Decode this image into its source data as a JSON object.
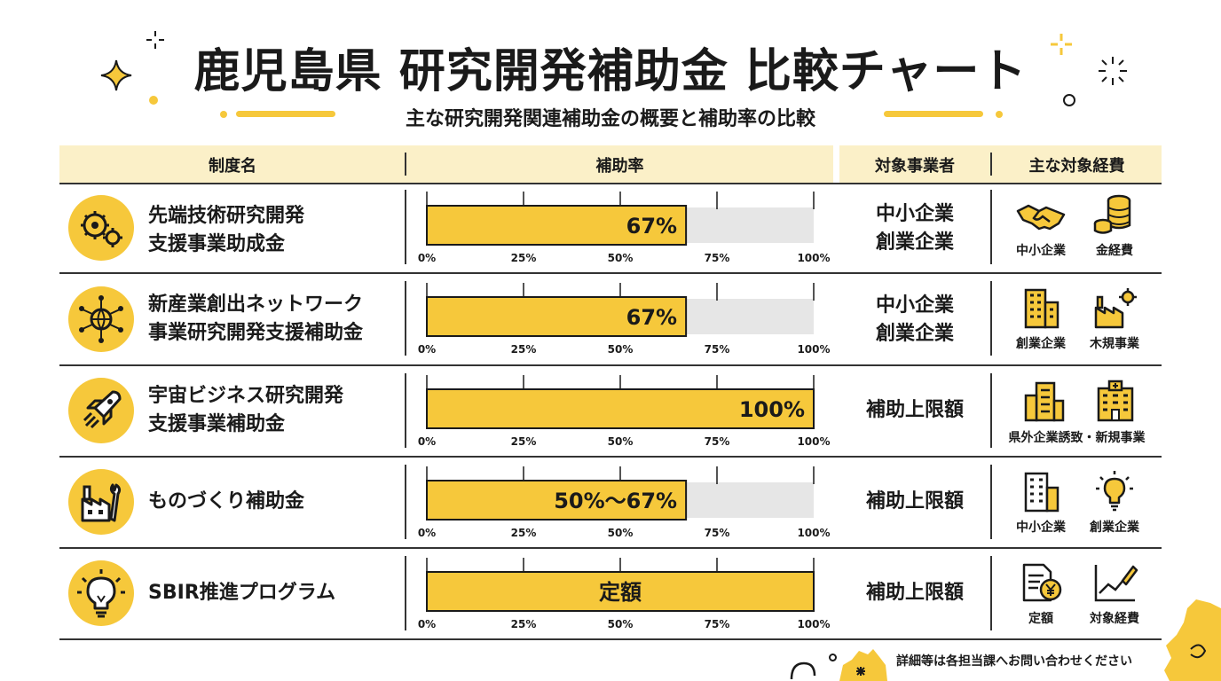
{
  "title": "鹿児島県 研究開発補助金 比較チャート",
  "subtitle": "主な研究開発関連補助金の概要と補助率の比較",
  "headers": {
    "name": "制度名",
    "rate": "補助率",
    "target": "対象事業者",
    "expenses": "主な対象経費"
  },
  "axis_ticks": [
    "0%",
    "25%",
    "50%",
    "75%",
    "100%"
  ],
  "rows": [
    {
      "name_lines": [
        "先端技術研究開発",
        "支援事業助成金"
      ],
      "icon": "gears-icon",
      "rate_label": "67%",
      "target_lines": [
        "中小企業",
        "創業企業"
      ],
      "expenses": [
        {
          "icon": "handshake-icon",
          "label": "中小企業"
        },
        {
          "icon": "coins-icon",
          "label": "金経費"
        }
      ]
    },
    {
      "name_lines": [
        "新産業創出ネットワーク",
        "事業研究開発支援補助金"
      ],
      "icon": "network-globe-icon",
      "rate_label": "67%",
      "target_lines": [
        "中小企業",
        "創業企業"
      ],
      "expenses": [
        {
          "icon": "building-icon",
          "label": "創業企業"
        },
        {
          "icon": "factory-gear-icon",
          "label": "木規事業"
        }
      ]
    },
    {
      "name_lines": [
        "宇宙ビジネス研究開発",
        "支援事業補助金"
      ],
      "icon": "rocket-icon",
      "rate_label": "100%",
      "target_lines": [
        "補助上限額"
      ],
      "expenses": [
        {
          "icon": "office-building-icon",
          "label": ""
        },
        {
          "icon": "hospital-building-icon",
          "label": ""
        }
      ],
      "expenses_caption": "県外企業誘致・新規事業"
    },
    {
      "name_lines": [
        "ものづくり補助金"
      ],
      "icon": "factory-wrench-icon",
      "rate_label": "50%〜67%",
      "target_lines": [
        "補助上限額"
      ],
      "expenses": [
        {
          "icon": "office-building-icon",
          "label": "中小企業"
        },
        {
          "icon": "lightbulb-icon",
          "label": "創業企業"
        }
      ]
    },
    {
      "name_lines": [
        "SBIR推進プログラム"
      ],
      "icon": "lightbulb-icon",
      "rate_label": "定額",
      "target_lines": [
        "補助上限額"
      ],
      "expenses": [
        {
          "icon": "document-yen-icon",
          "label": "定額"
        },
        {
          "icon": "chart-pen-icon",
          "label": "対象経費"
        }
      ]
    }
  ],
  "footer": "詳細等は各担当課へお問い合わせください",
  "colors": {
    "accent": "#f6c83b",
    "header_bg": "#fbf0c8",
    "track": "#e6e6e6",
    "ink": "#1a1a1a"
  },
  "chart_data": {
    "type": "bar",
    "orientation": "horizontal",
    "categories": [
      "先端技術研究開発支援事業助成金",
      "新産業創出ネットワーク事業研究開発支援補助金",
      "宇宙ビジネス研究開発支援事業補助金",
      "ものづくり補助金",
      "SBIR推進プログラム"
    ],
    "values": [
      67,
      67,
      100,
      67,
      100
    ],
    "value_labels": [
      "67%",
      "67%",
      "100%",
      "50%〜67%",
      "定額"
    ],
    "xlim": [
      0,
      100
    ],
    "xticks": [
      "0%",
      "25%",
      "50%",
      "75%",
      "100%"
    ],
    "title": "鹿児島県 研究開発補助金 比較チャート",
    "xlabel": "",
    "ylabel": ""
  }
}
